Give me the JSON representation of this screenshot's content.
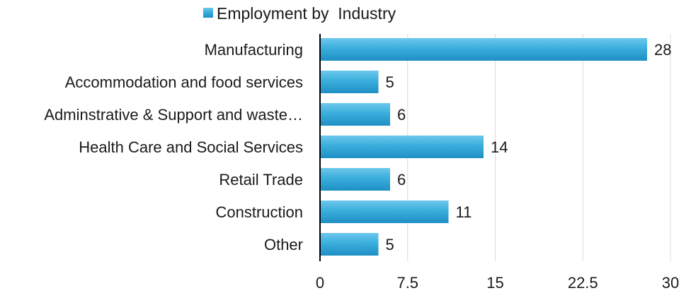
{
  "chart_data": {
    "type": "bar",
    "orientation": "horizontal",
    "categories": [
      "Manufacturing",
      "Accommodation and food services",
      "Adminstrative & Support and waste…",
      "Health Care and Social Services",
      "Retail Trade",
      "Construction",
      "Other"
    ],
    "series": [
      {
        "name": "Employment by  Industry",
        "values": [
          28,
          5,
          6,
          14,
          6,
          11,
          5
        ]
      }
    ],
    "xlim": [
      0,
      30
    ],
    "xticks": [
      "0",
      "7.5",
      "15",
      "22.5",
      "30"
    ],
    "grid": "vertical",
    "legend_position": "top",
    "data_labels": true,
    "colors": {
      "bar": "#3aaedc",
      "bar_light": "#6cc8ec",
      "bar_dark": "#1f8fc4",
      "grid": "#dcdcdc",
      "axis": "#000000"
    }
  }
}
